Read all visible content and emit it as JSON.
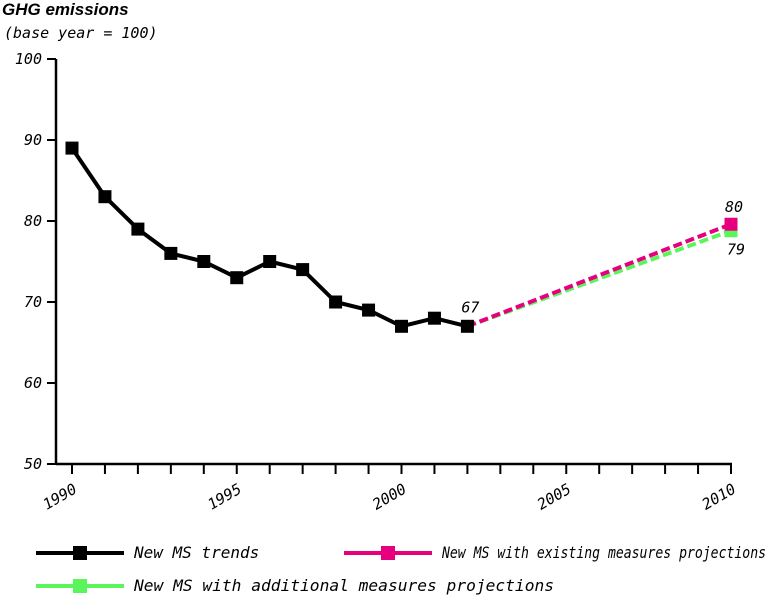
{
  "chart_data": {
    "type": "line",
    "title": "GHG emissions",
    "subtitle": "(base year = 100)",
    "xlabel": "",
    "ylabel": "",
    "ylim": [
      50,
      100
    ],
    "xlim": [
      1990,
      2010
    ],
    "yticks": [
      50,
      60,
      70,
      80,
      90,
      100
    ],
    "xticks": [
      1990,
      1995,
      2000,
      2005,
      2010
    ],
    "grid": false,
    "legend_position": "bottom",
    "series": [
      {
        "name": "New MS trends",
        "color": "#000000",
        "style": "solid",
        "x": [
          1990,
          1991,
          1992,
          1993,
          1994,
          1995,
          1996,
          1997,
          1998,
          1999,
          2000,
          2001,
          2002
        ],
        "y": [
          89,
          83,
          79,
          76,
          75,
          73,
          75,
          74,
          70,
          69,
          67,
          68,
          67
        ]
      },
      {
        "name": "New MS with existing measures projections",
        "color": "#e6007e",
        "style": "dashed",
        "x": [
          2002,
          2010
        ],
        "y": [
          67,
          79.6
        ]
      },
      {
        "name": "New MS with additional measures projections",
        "color": "#5af55a",
        "style": "dashed",
        "x": [
          2002,
          2010
        ],
        "y": [
          67,
          78.8
        ]
      }
    ],
    "data_labels": [
      {
        "text": "67",
        "x": 2002,
        "y": 67
      },
      {
        "text": "80",
        "x": 2010,
        "y": 79.6
      },
      {
        "text": "79",
        "x": 2010,
        "y": 78.8
      }
    ]
  }
}
